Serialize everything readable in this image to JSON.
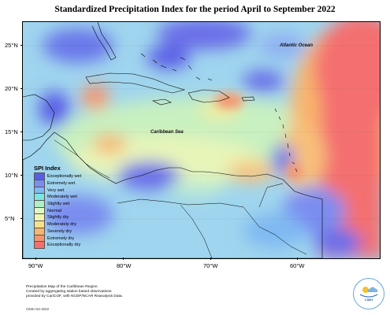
{
  "title": "Standardized Precipitation Index for the period April to September 2022",
  "axes": {
    "lat_labels": [
      "25°N",
      "20°N",
      "15°N",
      "10°N",
      "5°N"
    ],
    "lon_labels": [
      "90°W",
      "80°W",
      "70°W",
      "60°W"
    ]
  },
  "places": {
    "atlantic": "Atlantic Ocean",
    "caribbean": "Caribbean Sea"
  },
  "legend": {
    "title": "SPI Index",
    "items": [
      {
        "label": "Exceptionally wet",
        "color": "#5a5ee6"
      },
      {
        "label": "Extremely wet",
        "color": "#7a8df0"
      },
      {
        "label": "Very wet",
        "color": "#7fb9f2"
      },
      {
        "label": "Moderately wet",
        "color": "#7ee6e0"
      },
      {
        "label": "Slightly wet",
        "color": "#aef0c8"
      },
      {
        "label": "Normal",
        "color": "#dff7c4"
      },
      {
        "label": "Slightly dry",
        "color": "#f2f5b0"
      },
      {
        "label": "Moderately dry",
        "color": "#f7e08a"
      },
      {
        "label": "Severely dry",
        "color": "#f8b56e"
      },
      {
        "label": "Extremely dry",
        "color": "#f5966e"
      },
      {
        "label": "Exceptionally dry",
        "color": "#f46e6e"
      }
    ]
  },
  "footer": {
    "line1": "Precipitation Map of the Caribbean Region.",
    "line2": "Created by aggregating station based observations",
    "line3": "provided by CariCOF, with NCEP/NCAR Reanalysis Data.",
    "date": "CIMH Oct-2022"
  },
  "logo": {
    "text": "CIMH"
  }
}
